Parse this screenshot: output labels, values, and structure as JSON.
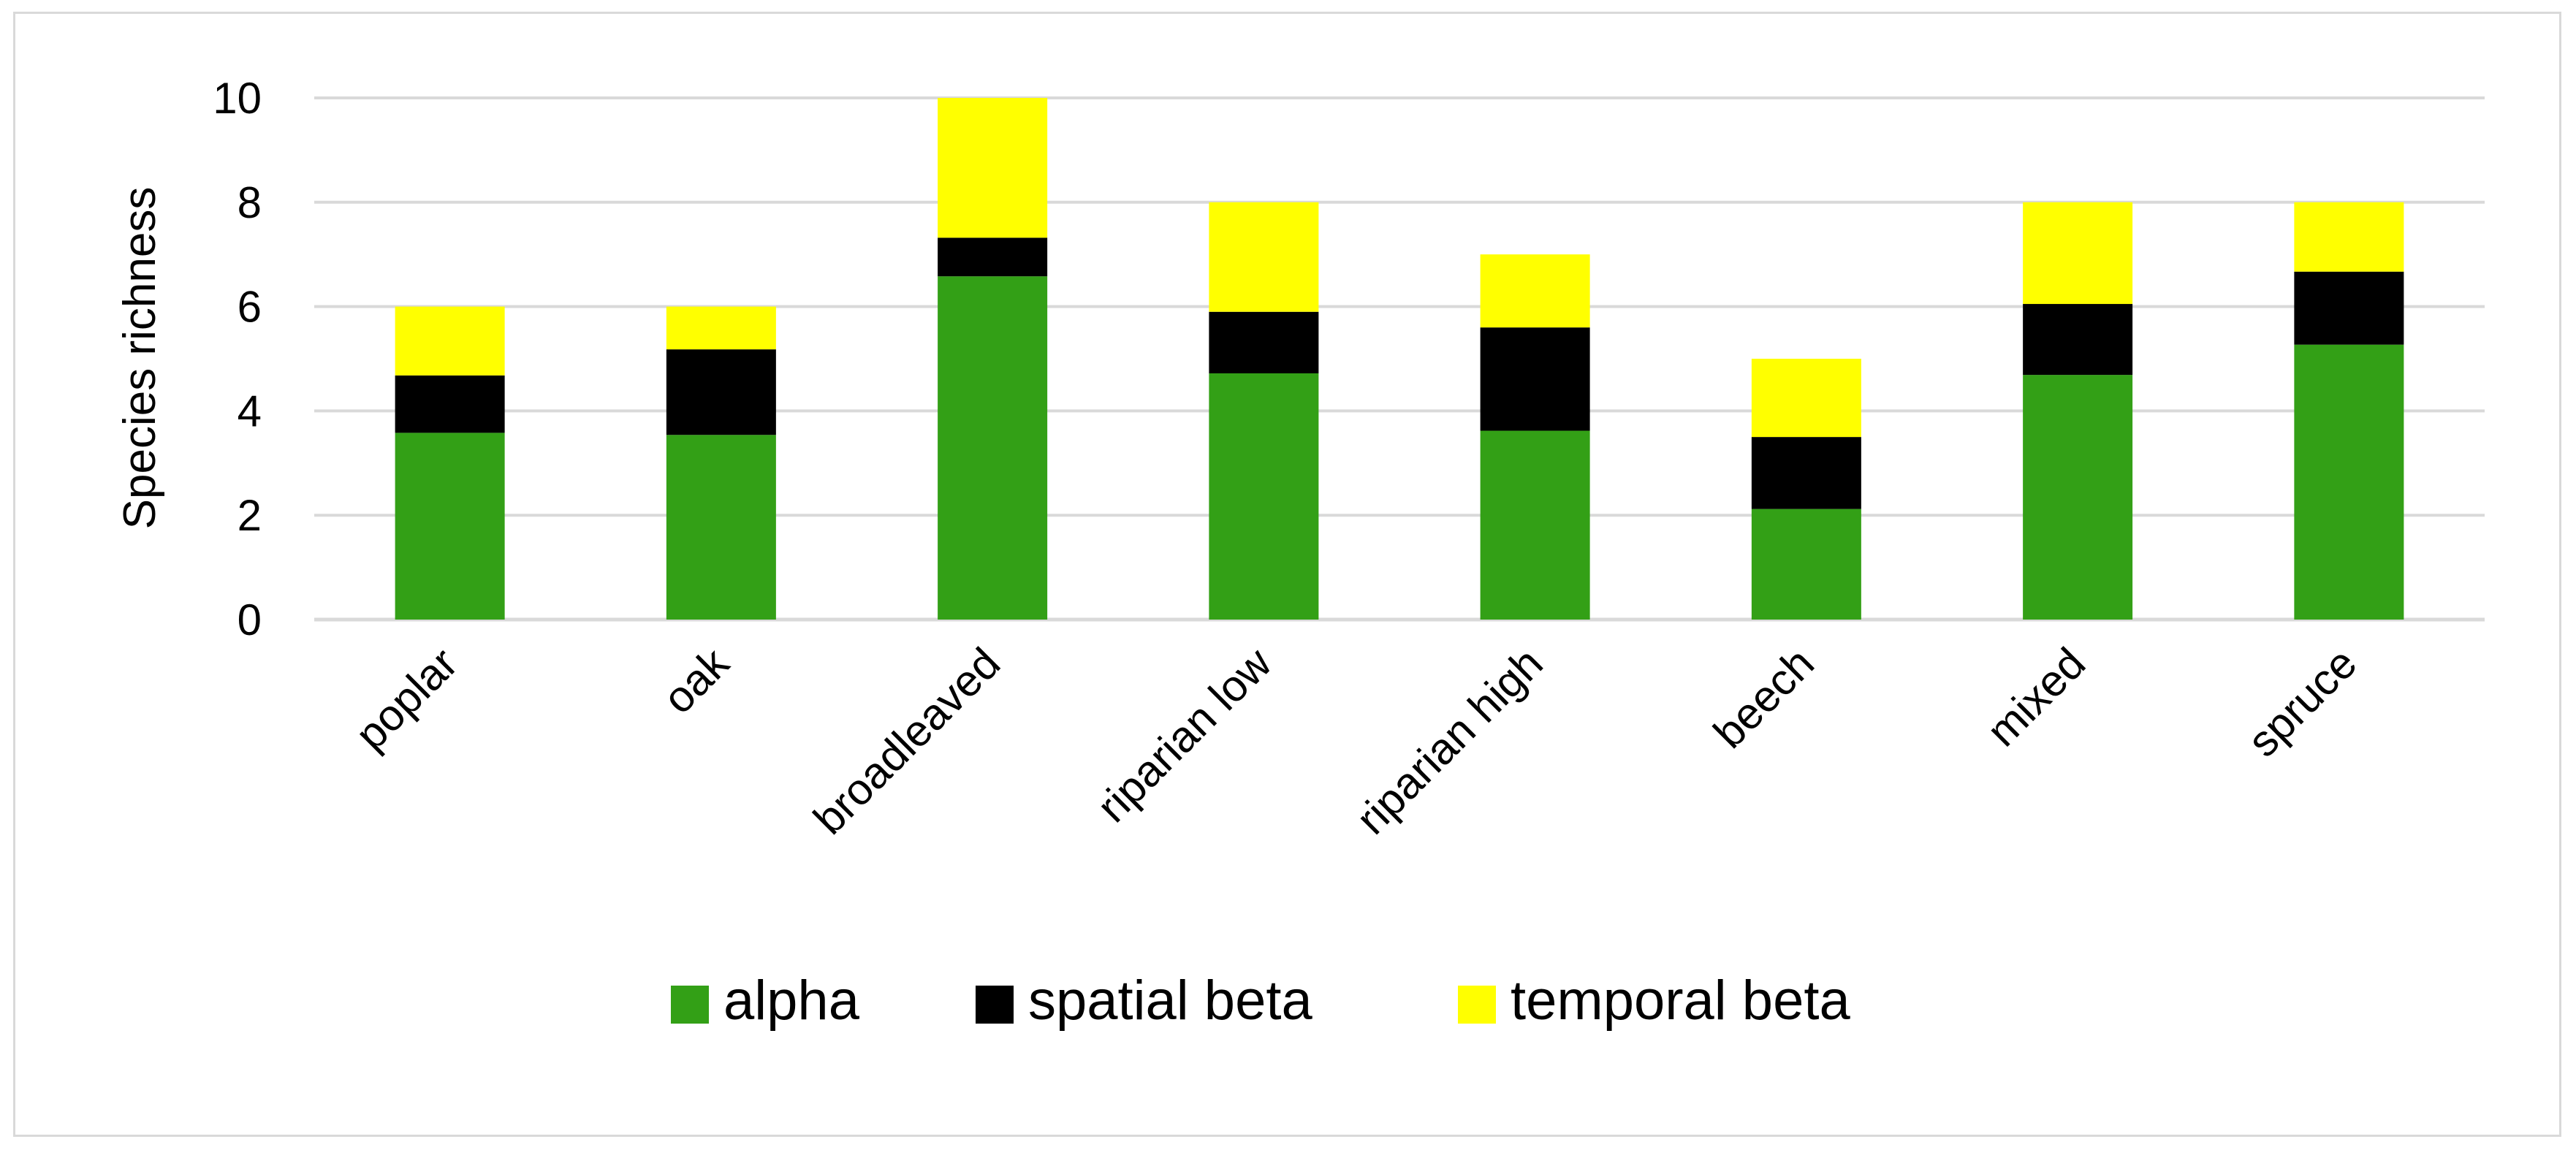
{
  "chart_data": {
    "type": "bar",
    "stacked": true,
    "title": "",
    "xlabel": "",
    "ylabel": "Species richness",
    "ylim": [
      0,
      10
    ],
    "yticks": [
      0,
      2,
      4,
      6,
      8,
      10
    ],
    "grid": true,
    "legend_position": "bottom",
    "categories": [
      "poplar",
      "oak",
      "broadleaved",
      "riparian low",
      "riparian high",
      "beech",
      "mixed",
      "spruce"
    ],
    "series": [
      {
        "name": "alpha",
        "color": "#33a016",
        "values": [
          3.58,
          3.54,
          6.58,
          4.72,
          3.62,
          2.12,
          4.69,
          5.27
        ]
      },
      {
        "name": "spatial beta",
        "color": "#000000",
        "values": [
          1.1,
          1.64,
          0.74,
          1.18,
          1.98,
          1.38,
          1.36,
          1.4
        ]
      },
      {
        "name": "temporal beta",
        "color": "#ffff00",
        "values": [
          1.32,
          0.82,
          2.68,
          2.1,
          1.4,
          1.5,
          1.95,
          1.33
        ]
      }
    ]
  }
}
